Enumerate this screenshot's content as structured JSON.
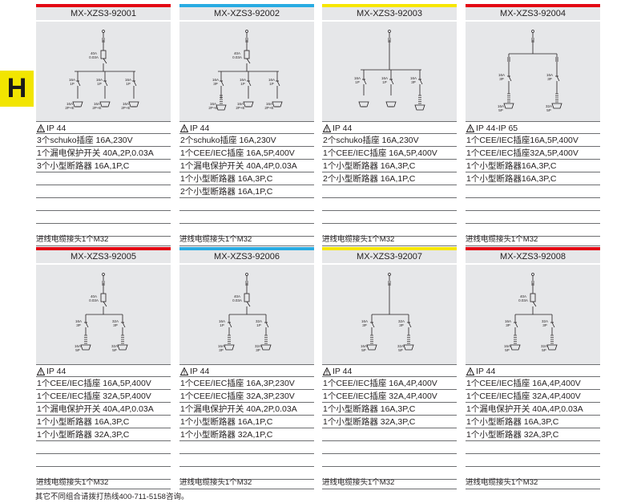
{
  "section_letter": "H",
  "bar_colors": {
    "red": "#e30613",
    "blue": "#29abe2",
    "yellow": "#f7e600"
  },
  "cards": [
    {
      "code": "MX-XZS3-92001",
      "bar": "#e30613",
      "ip": "IP 44",
      "lines": [
        "3个schuko插座 16A,230V",
        "1个漏电保护开关 40A,2P,0.03A",
        "3个小型断路器 16A,1P,C"
      ],
      "footer": "进线电缆接头1个M32"
    },
    {
      "code": "MX-XZS3-92002",
      "bar": "#29abe2",
      "ip": "IP 44",
      "lines": [
        "2个schuko插座 16A,230V",
        "1个CEE/IEC插座 16A,5P,400V",
        "1个漏电保护开关 40A,4P,0.03A",
        "1个小型断路器 16A,3P,C",
        "2个小型断路器 16A,1P,C"
      ],
      "footer": "进线电缆接头1个M32"
    },
    {
      "code": "MX-XZS3-92003",
      "bar": "#f7e600",
      "ip": "IP 44",
      "lines": [
        "2个schuko插座 16A,230V",
        "1个CEE/IEC插座 16A,5P,400V",
        "1个小型断路器 16A,3P,C",
        "2个小型断路器 16A,1P,C"
      ],
      "footer": "进线电缆接头1个M32"
    },
    {
      "code": "MX-XZS3-92004",
      "bar": "#e30613",
      "ip": "IP 44-IP 65",
      "lines": [
        "1个CEE/IEC插座16A,5P,400V",
        "1个CEE/IEC插座32A,5P,400V",
        "1个小型断路器16A,3P,C",
        "1个小型断路器16A,3P,C"
      ],
      "footer": "进线电缆接头1个M32"
    },
    {
      "code": "MX-XZS3-92005",
      "bar": "#e30613",
      "ip": "IP 44",
      "lines": [
        "1个CEE/IEC插座 16A,5P,400V",
        "1个CEE/IEC插座 32A,5P,400V",
        "1个漏电保护开关 40A,4P,0.03A",
        "1个小型断路器 16A,3P,C",
        "1个小型断路器 32A,3P,C"
      ],
      "footer": "进线电缆接头1个M32"
    },
    {
      "code": "MX-XZS3-92006",
      "bar": "#29abe2",
      "ip": "IP 44",
      "lines": [
        "1个CEE/IEC插座 16A,3P,230V",
        "1个CEE/IEC插座 32A,3P,230V",
        "1个漏电保护开关 40A,2P,0.03A",
        "1个小型断路器 16A,1P,C",
        "1个小型断路器 32A,1P,C"
      ],
      "footer": "进线电缆接头1个M32"
    },
    {
      "code": "MX-XZS3-92007",
      "bar": "#f7e600",
      "ip": "IP 44",
      "lines": [
        "1个CEE/IEC插座 16A,4P,400V",
        "1个CEE/IEC插座 32A,4P,400V",
        "1个小型断路器 16A,3P,C",
        "1个小型断路器 32A,3P,C"
      ],
      "footer": "进线电缆接头1个M32"
    },
    {
      "code": "MX-XZS3-92008",
      "bar": "#e30613",
      "ip": "IP 44",
      "lines": [
        "1个CEE/IEC插座 16A,4P,400V",
        "1个CEE/IEC插座 32A,4P,400V",
        "1个漏电保护开关 40A,4P,0.03A",
        "1个小型断路器 16A,3P,C",
        "1个小型断路器 32A,3P,C"
      ],
      "footer": "进线电缆接头1个M32"
    }
  ],
  "diagram_labels": {
    "rcd": "40A",
    "rcd2": "0.03A",
    "b16": "16A",
    "b32": "32A",
    "p1": "1P",
    "p3": "3P",
    "s2p": "2P+E",
    "s3p": "3P",
    "s5p": "5P"
  },
  "bottom_note": "其它不同组合请拨打热线400-711-5158咨询。"
}
